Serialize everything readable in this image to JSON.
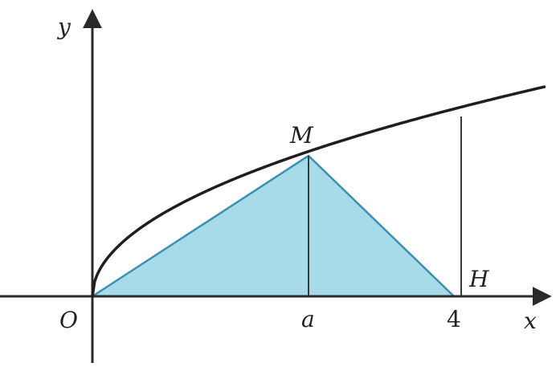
{
  "colors": {
    "triangle_fill": "#a8dbea",
    "triangle_stroke": "#3b8fb0",
    "axis": "#2a2a2a",
    "curve": "#1e1e1e",
    "line": "#3a3a3a"
  },
  "labels": {
    "y_axis": "y",
    "x_axis": "x",
    "origin": "O",
    "point_m": "M",
    "point_h": "H",
    "tick_a": "a",
    "tick_4": "4"
  },
  "geometry_model": {
    "curve": "y = sqrt(x)",
    "x_start": 0,
    "x_end": 5,
    "a_value": 2.25,
    "h_value": 4
  }
}
